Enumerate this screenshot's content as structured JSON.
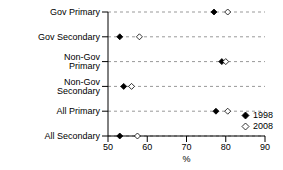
{
  "chart_data": {
    "type": "scatter",
    "orientation": "horizontal",
    "x_label": "%",
    "categories": [
      "Gov Primary",
      "Gov Secondary",
      "Non-Gov Primary",
      "Non-Gov Secondary",
      "All Primary",
      "All Secondary"
    ],
    "series": [
      {
        "name": "1998",
        "color": "#000000",
        "marker": "filled_diamond",
        "values": [
          77,
          53,
          79,
          54,
          77.5,
          53
        ]
      },
      {
        "name": "2008",
        "color": "#000000",
        "marker": "open_diamond",
        "values": [
          80.5,
          58,
          80,
          56,
          80.5,
          57.5
        ]
      }
    ],
    "xlim": [
      50,
      90
    ],
    "xticks": [
      50,
      60,
      70,
      80,
      90
    ],
    "grid": true,
    "legend": "lower right"
  }
}
